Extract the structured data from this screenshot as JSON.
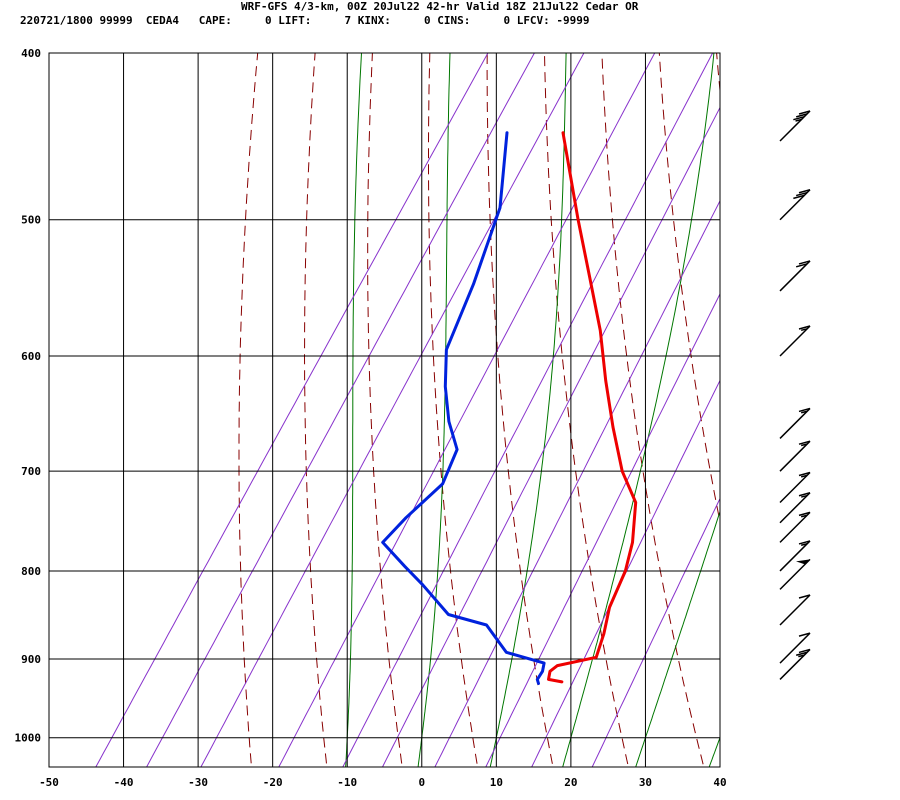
{
  "header": {
    "title": "WRF-GFS 4/3-km, 00Z 20Jul22 42-hr Valid 18Z 21Jul22 Cedar OR",
    "stats": "220721/1800 99999  CEDA4   CAPE:     0 LIFT:     7 KINX:     0 CINS:     0 LFCV: -9999"
  },
  "chart_data": {
    "type": "line",
    "subtype": "skew-T log-P sounding",
    "title": "WRF-GFS 4/3-km, 00Z 20Jul22 42-hr Valid 18Z 21Jul22 Cedar OR",
    "xlabel": "",
    "ylabel": "",
    "x_unit": "deg C",
    "y_unit": "hPa",
    "y_scale": "log",
    "y_reversed": true,
    "xlim": [
      -50,
      40
    ],
    "ylim": [
      1040,
      400
    ],
    "x_ticks": [
      -50,
      -40,
      -30,
      -20,
      -10,
      0,
      10,
      20,
      30,
      40
    ],
    "y_ticks": [
      400,
      500,
      600,
      700,
      800,
      900,
      1000
    ],
    "grid": true,
    "colors": {
      "temperature": "#ee0000",
      "dewpoint": "#0022dd",
      "dry_adiabat": "#880000",
      "moist_adiabat": "#007700",
      "mixing_ratio": "#8833cc",
      "grid": "#000000",
      "wind_barb": "#000000"
    },
    "series": [
      {
        "role": "temperature",
        "points": [
          {
            "p": 928,
            "t": 14.0
          },
          {
            "p": 925,
            "t": 12.0
          },
          {
            "p": 915,
            "t": 11.5
          },
          {
            "p": 908,
            "t": 12.0
          },
          {
            "p": 898,
            "t": 16.5
          },
          {
            "p": 870,
            "t": 15.5
          },
          {
            "p": 840,
            "t": 14.0
          },
          {
            "p": 800,
            "t": 13.0
          },
          {
            "p": 770,
            "t": 11.5
          },
          {
            "p": 730,
            "t": 8.5
          },
          {
            "p": 700,
            "t": 4.0
          },
          {
            "p": 660,
            "t": -1.0
          },
          {
            "p": 620,
            "t": -6.0
          },
          {
            "p": 580,
            "t": -11.0
          },
          {
            "p": 540,
            "t": -17.0
          },
          {
            "p": 500,
            "t": -23.5
          },
          {
            "p": 445,
            "t": -33.0
          }
        ]
      },
      {
        "role": "dewpoint",
        "points": [
          {
            "p": 930,
            "t": 11.0
          },
          {
            "p": 925,
            "t": 10.5
          },
          {
            "p": 915,
            "t": 10.5
          },
          {
            "p": 905,
            "t": 10.0
          },
          {
            "p": 892,
            "t": 4.0
          },
          {
            "p": 860,
            "t": -1.0
          },
          {
            "p": 848,
            "t": -7.0
          },
          {
            "p": 815,
            "t": -13.0
          },
          {
            "p": 795,
            "t": -17.0
          },
          {
            "p": 770,
            "t": -22.0
          },
          {
            "p": 745,
            "t": -21.0
          },
          {
            "p": 712,
            "t": -19.0
          },
          {
            "p": 680,
            "t": -20.0
          },
          {
            "p": 655,
            "t": -23.5
          },
          {
            "p": 625,
            "t": -27.0
          },
          {
            "p": 595,
            "t": -30.0
          },
          {
            "p": 545,
            "t": -32.0
          },
          {
            "p": 492,
            "t": -35.0
          },
          {
            "p": 445,
            "t": -40.5
          }
        ]
      }
    ],
    "background_lines": {
      "dry_adiabats_theta_K": [
        250,
        260,
        270,
        280,
        290,
        300,
        310,
        320,
        330,
        340,
        350,
        360
      ],
      "moist_adiabats_at_1000hPa_C": [
        -10,
        0,
        10,
        20,
        30,
        40
      ],
      "mixing_ratio_lines_g_per_kg": [
        0.1,
        0.2,
        0.4,
        1,
        2,
        3,
        5,
        8,
        12,
        20
      ]
    },
    "wind_barbs": [
      {
        "p": 925,
        "speed_kt": 25
      },
      {
        "p": 905,
        "speed_kt": 10
      },
      {
        "p": 860,
        "speed_kt": 10
      },
      {
        "p": 820,
        "speed_kt": 50
      },
      {
        "p": 800,
        "speed_kt": 15
      },
      {
        "p": 770,
        "speed_kt": 15
      },
      {
        "p": 750,
        "speed_kt": 15
      },
      {
        "p": 730,
        "speed_kt": 15
      },
      {
        "p": 700,
        "speed_kt": 15
      },
      {
        "p": 670,
        "speed_kt": 15
      },
      {
        "p": 600,
        "speed_kt": 15
      },
      {
        "p": 550,
        "speed_kt": 20
      },
      {
        "p": 500,
        "speed_kt": 30
      },
      {
        "p": 450,
        "speed_kt": 35
      }
    ]
  }
}
